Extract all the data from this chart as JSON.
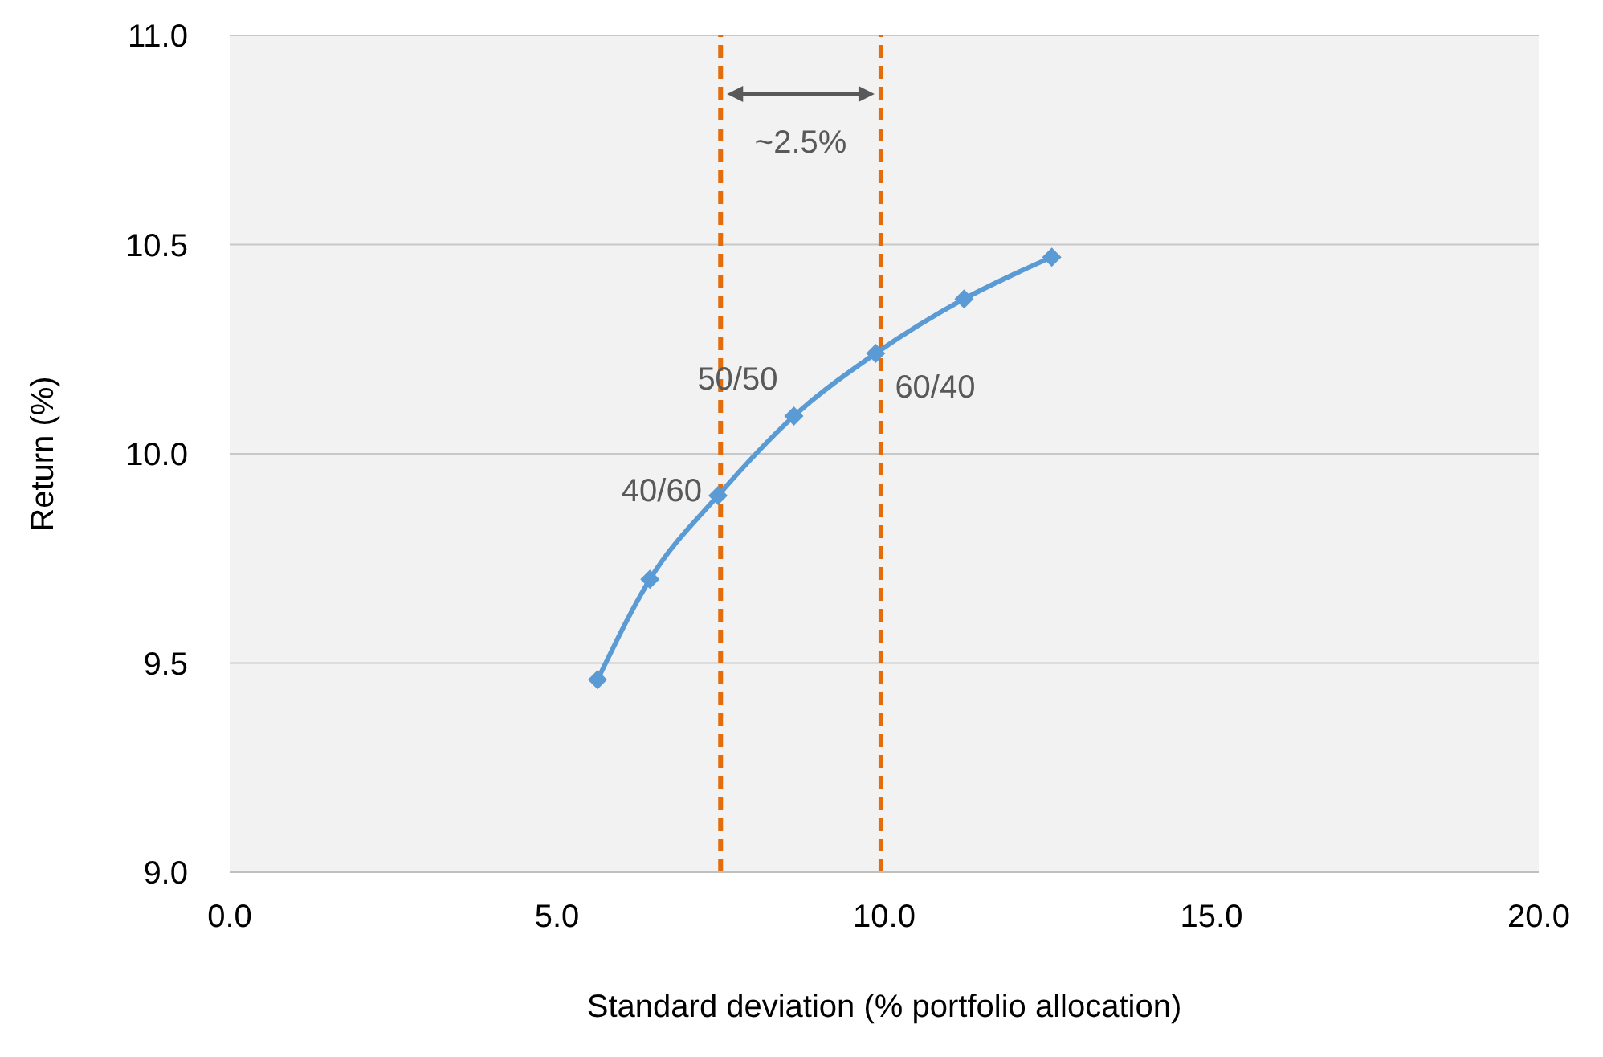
{
  "chart_data": {
    "type": "line",
    "xlabel": "Standard deviation (% portfolio allocation)",
    "ylabel": "Return (%)",
    "x": [
      5.62,
      6.42,
      7.46,
      8.62,
      9.87,
      11.22,
      12.56
    ],
    "series": [
      {
        "color": "#5b9bd5",
        "values": [
          9.46,
          9.7,
          9.9,
          10.09,
          10.24,
          10.37,
          10.47
        ]
      }
    ],
    "xlim": [
      0,
      20
    ],
    "xticks": [
      {
        "value": 0,
        "label": "0.0"
      },
      {
        "value": 5,
        "label": "5.0"
      },
      {
        "value": 10,
        "label": "10.0"
      },
      {
        "value": 15,
        "label": "15.0"
      },
      {
        "value": 20,
        "label": "20.0"
      }
    ],
    "ylim": [
      9,
      11
    ],
    "yticks": [
      {
        "value": 9,
        "label": "9.0"
      },
      {
        "value": 9.5,
        "label": "9.5"
      },
      {
        "value": 10,
        "label": "10.0"
      },
      {
        "value": 10.5,
        "label": "10.5"
      },
      {
        "value": 11,
        "label": "11.0"
      }
    ],
    "grid": "y",
    "marker": "diamond",
    "line_style": "solid",
    "ref_lines": [
      {
        "axis": "x",
        "value": 7.5,
        "color": "#e46c0a",
        "line_style": "dashed"
      },
      {
        "axis": "x",
        "value": 9.95,
        "color": "#e46c0a",
        "line_style": "dashed"
      }
    ],
    "annotations": [
      {
        "text": "40/60",
        "x": 7.46,
        "y": 9.9
      },
      {
        "text": "50/50",
        "x": 8.62,
        "y": 10.09
      },
      {
        "text": "60/40",
        "x": 9.87,
        "y": 10.24
      },
      "~2.5%"
    ]
  }
}
